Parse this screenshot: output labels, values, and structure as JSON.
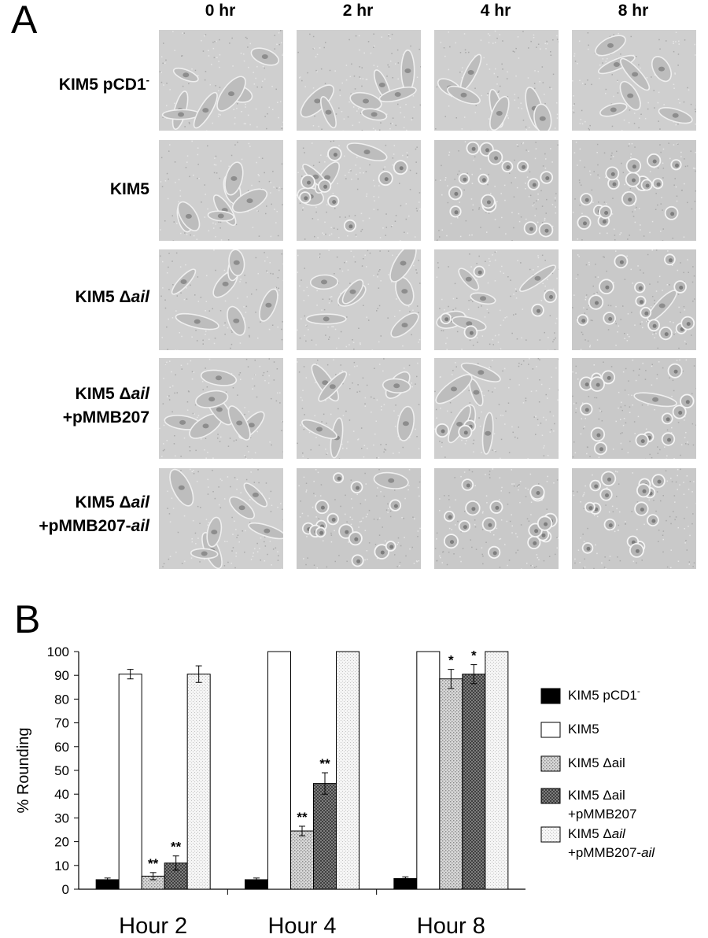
{
  "figure": {
    "panel_a_label": "A",
    "panel_b_label": "B",
    "panel_a": {
      "timepoints": [
        "0 hr",
        "2 hr",
        "4 hr",
        "8 hr"
      ],
      "rows": [
        {
          "label_lines": [
            {
              "pre": "KIM5 pCD1",
              "ital": "",
              "post": "",
              "sup": "-"
            }
          ]
        },
        {
          "label_lines": [
            {
              "pre": "KIM5",
              "ital": "",
              "post": "",
              "sup": ""
            }
          ]
        },
        {
          "label_lines": [
            {
              "pre": "KIM5 Δ",
              "ital": "ail",
              "post": "",
              "sup": ""
            }
          ]
        },
        {
          "label_lines": [
            {
              "pre": "KIM5 Δ",
              "ital": "ail",
              "post": "",
              "sup": ""
            },
            {
              "pre": "+pMMB207",
              "ital": "",
              "post": "",
              "sup": ""
            }
          ]
        },
        {
          "label_lines": [
            {
              "pre": "KIM5 Δ",
              "ital": "ail",
              "post": "",
              "sup": ""
            },
            {
              "pre": "+pMMB207-",
              "ital": "ail",
              "post": "",
              "sup": ""
            }
          ]
        }
      ],
      "cell_state_rounded": [
        [
          0.0,
          0.0,
          0.0,
          0.0
        ],
        [
          0.0,
          0.5,
          0.95,
          1.0
        ],
        [
          0.0,
          0.0,
          0.3,
          0.9
        ],
        [
          0.0,
          0.0,
          0.2,
          0.9
        ],
        [
          0.0,
          0.9,
          1.0,
          1.0
        ]
      ]
    }
  },
  "chart_data": {
    "type": "bar",
    "title": "",
    "xlabel": "",
    "ylabel": "% Rounding",
    "ylim": [
      0,
      100
    ],
    "yticks": [
      0,
      10,
      20,
      30,
      40,
      50,
      60,
      70,
      80,
      90,
      100
    ],
    "categories": [
      "Hour 2",
      "Hour 4",
      "Hour 8"
    ],
    "grid": false,
    "legend_position": "right",
    "series": [
      {
        "name": "KIM5 pCD1-",
        "legend_lines": [
          {
            "pre": "KIM5 pCD1",
            "ital": "",
            "sup": "-"
          }
        ],
        "values": [
          4,
          4,
          4.5
        ],
        "errors": [
          0.7,
          0.7,
          0.7
        ],
        "fill": "black",
        "significance": [
          "",
          "",
          ""
        ]
      },
      {
        "name": "KIM5",
        "legend_lines": [
          {
            "pre": "KIM5",
            "ital": "",
            "sup": ""
          }
        ],
        "values": [
          90.5,
          100,
          100
        ],
        "errors": [
          2,
          0,
          0
        ],
        "fill": "white",
        "significance": [
          "",
          "",
          ""
        ]
      },
      {
        "name": "KIM5 Δail",
        "legend_lines": [
          {
            "pre": "KIM5 Δail",
            "ital": "",
            "sup": ""
          }
        ],
        "values": [
          5.5,
          24.5,
          88.5
        ],
        "errors": [
          1.5,
          2,
          4
        ],
        "fill": "light-stipple",
        "significance": [
          "**",
          "**",
          "*"
        ]
      },
      {
        "name": "KIM5 Δail +pMMB207",
        "legend_lines": [
          {
            "pre": "KIM5 Δail",
            "ital": "",
            "sup": ""
          },
          {
            "pre": "+pMMB207",
            "ital": "",
            "sup": ""
          }
        ],
        "values": [
          11,
          44.5,
          90.5
        ],
        "errors": [
          3,
          4.5,
          4
        ],
        "fill": "dark-crosshatch",
        "significance": [
          "**",
          "**",
          "*"
        ]
      },
      {
        "name": "KIM5 Δail +pMMB207-ail",
        "legend_lines": [
          {
            "pre": "KIM5 Δ",
            "ital": "ail",
            "sup": ""
          },
          {
            "pre": "+pMMB207-",
            "ital": "ail",
            "sup": ""
          }
        ],
        "values": [
          90.5,
          100,
          100
        ],
        "errors": [
          3.5,
          0,
          0
        ],
        "fill": "faint-dots",
        "significance": [
          "",
          "",
          ""
        ]
      }
    ]
  }
}
